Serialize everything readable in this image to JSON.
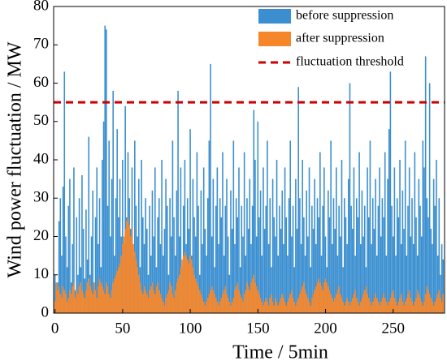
{
  "chart_data": {
    "type": "bar",
    "xlabel": "Time / 5min",
    "ylabel": "Wind power fluctuation / MW",
    "x": [
      0,
      1,
      2,
      3,
      4,
      5,
      6,
      7,
      8,
      9,
      10,
      11,
      12,
      13,
      14,
      15,
      16,
      17,
      18,
      19,
      20,
      21,
      22,
      23,
      24,
      25,
      26,
      27,
      28,
      29,
      30,
      31,
      32,
      33,
      34,
      35,
      36,
      37,
      38,
      39,
      40,
      41,
      42,
      43,
      44,
      45,
      46,
      47,
      48,
      49,
      50,
      51,
      52,
      53,
      54,
      55,
      56,
      57,
      58,
      59,
      60,
      61,
      62,
      63,
      64,
      65,
      66,
      67,
      68,
      69,
      70,
      71,
      72,
      73,
      74,
      75,
      76,
      77,
      78,
      79,
      80,
      81,
      82,
      83,
      84,
      85,
      86,
      87,
      88,
      89,
      90,
      91,
      92,
      93,
      94,
      95,
      96,
      97,
      98,
      99,
      100,
      101,
      102,
      103,
      104,
      105,
      106,
      107,
      108,
      109,
      110,
      111,
      112,
      113,
      114,
      115,
      116,
      117,
      118,
      119,
      120,
      121,
      122,
      123,
      124,
      125,
      126,
      127,
      128,
      129,
      130,
      131,
      132,
      133,
      134,
      135,
      136,
      137,
      138,
      139,
      140,
      141,
      142,
      143,
      144,
      145,
      146,
      147,
      148,
      149,
      150,
      151,
      152,
      153,
      154,
      155,
      156,
      157,
      158,
      159,
      160,
      161,
      162,
      163,
      164,
      165,
      166,
      167,
      168,
      169,
      170,
      171,
      172,
      173,
      174,
      175,
      176,
      177,
      178,
      179,
      180,
      181,
      182,
      183,
      184,
      185,
      186,
      187,
      188,
      189,
      190,
      191,
      192,
      193,
      194,
      195,
      196,
      197,
      198,
      199,
      200,
      201,
      202,
      203,
      204,
      205,
      206,
      207,
      208,
      209,
      210,
      211,
      212,
      213,
      214,
      215,
      216,
      217,
      218,
      219,
      220,
      221,
      222,
      223,
      224,
      225,
      226,
      227,
      228,
      229,
      230,
      231,
      232,
      233,
      234,
      235,
      236,
      237,
      238,
      239,
      240,
      241,
      242,
      243,
      244,
      245,
      246,
      247,
      248,
      249,
      250,
      251,
      252,
      253,
      254,
      255,
      256,
      257,
      258,
      259,
      260,
      261,
      262,
      263,
      264,
      265,
      266,
      267,
      268,
      269,
      270,
      271,
      272,
      273,
      274,
      275,
      276,
      277,
      278,
      279,
      280,
      281,
      282,
      283,
      284,
      285,
      286,
      287
    ],
    "series": [
      {
        "name": "before suppression",
        "color": "#3b8fd0",
        "values": [
          10,
          5,
          8,
          24,
          30,
          15,
          33,
          63,
          20,
          12,
          28,
          35,
          8,
          18,
          38,
          6,
          25,
          10,
          30,
          12,
          36,
          22,
          9,
          27,
          14,
          46,
          10,
          20,
          32,
          8,
          25,
          38,
          18,
          30,
          12,
          40,
          50,
          75,
          74,
          28,
          45,
          20,
          35,
          58,
          15,
          30,
          48,
          25,
          35,
          20,
          40,
          18,
          54,
          25,
          42,
          30,
          22,
          38,
          15,
          45,
          28,
          20,
          35,
          12,
          40,
          25,
          18,
          30,
          22,
          10,
          28,
          15,
          32,
          20,
          38,
          12,
          25,
          30,
          18,
          40,
          15,
          22,
          35,
          28,
          10,
          30,
          20,
          45,
          25,
          15,
          32,
          58,
          20,
          38,
          12,
          28,
          40,
          18,
          30,
          22,
          48,
          15,
          35,
          25,
          20,
          42,
          28,
          10,
          32,
          18,
          38,
          22,
          15,
          30,
          45,
          65,
          20,
          35,
          12,
          28,
          38,
          18,
          30,
          25,
          42,
          15,
          28,
          35,
          20,
          10,
          32,
          22,
          45,
          18,
          30,
          25,
          38,
          12,
          28,
          20,
          42,
          15,
          30,
          22,
          35,
          18,
          28,
          53,
          40,
          20,
          50,
          25,
          32,
          15,
          38,
          22,
          28,
          45,
          18,
          30,
          12,
          35,
          25,
          20,
          40,
          15,
          28,
          22,
          32,
          18,
          38,
          25,
          15,
          30,
          45,
          20,
          28,
          12,
          35,
          22,
          59,
          30,
          18,
          40,
          25,
          15,
          32,
          20,
          38,
          12,
          28,
          22,
          35,
          18,
          30,
          25,
          42,
          15,
          28,
          38,
          20,
          12,
          32,
          25,
          45,
          18,
          30,
          22,
          38,
          15,
          28,
          20,
          40,
          12,
          30,
          25,
          18,
          35,
          60,
          28,
          22,
          38,
          15,
          30,
          25,
          42,
          18,
          32,
          20,
          28,
          12,
          38,
          25,
          45,
          18,
          30,
          22,
          35,
          15,
          28,
          38,
          20,
          30,
          25,
          42,
          15,
          35,
          48,
          63,
          28,
          20,
          38,
          15,
          30,
          25,
          40,
          18,
          32,
          22,
          45,
          15,
          28,
          38,
          20,
          30,
          18,
          42,
          25,
          15,
          35,
          28,
          20,
          45,
          38,
          67,
          30,
          25,
          60,
          22,
          18,
          35,
          28,
          40,
          15,
          30,
          10,
          18,
          14
        ]
      },
      {
        "name": "after suppression",
        "color": "#f5862a",
        "values": [
          3,
          8,
          6,
          7,
          5,
          4,
          7,
          6,
          5,
          3,
          4,
          6,
          5,
          7,
          8,
          4,
          6,
          5,
          7,
          8,
          6,
          5,
          4,
          6,
          8,
          9,
          7,
          6,
          5,
          8,
          6,
          4,
          7,
          9,
          8,
          7,
          6,
          5,
          8,
          7,
          5,
          4,
          6,
          8,
          9,
          10,
          11,
          12,
          13,
          15,
          18,
          20,
          22,
          24,
          25,
          23,
          20,
          22,
          18,
          16,
          14,
          12,
          10,
          8,
          6,
          5,
          7,
          6,
          5,
          4,
          6,
          7,
          8,
          6,
          5,
          7,
          8,
          6,
          5,
          4,
          3,
          2,
          4,
          5,
          6,
          8,
          7,
          5,
          4,
          6,
          8,
          9,
          10,
          12,
          14,
          15,
          16,
          15,
          14,
          13,
          15,
          14,
          12,
          10,
          9,
          8,
          7,
          6,
          5,
          4,
          3,
          2,
          3,
          4,
          5,
          6,
          7,
          6,
          5,
          4,
          3,
          2,
          3,
          4,
          5,
          6,
          7,
          5,
          4,
          3,
          2,
          3,
          4,
          6,
          7,
          8,
          6,
          5,
          4,
          3,
          5,
          6,
          8,
          7,
          6,
          8,
          9,
          10,
          8,
          7,
          6,
          5,
          4,
          3,
          2,
          3,
          4,
          3,
          2,
          4,
          5,
          3,
          2,
          4,
          3,
          2,
          3,
          4,
          5,
          4,
          3,
          2,
          3,
          4,
          5,
          6,
          4,
          3,
          2,
          3,
          4,
          5,
          6,
          7,
          8,
          6,
          5,
          4,
          3,
          2,
          4,
          5,
          6,
          7,
          8,
          9,
          8,
          7,
          6,
          8,
          9,
          8,
          7,
          6,
          5,
          4,
          3,
          4,
          5,
          6,
          7,
          5,
          4,
          3,
          2,
          3,
          4,
          3,
          2,
          3,
          4,
          5,
          6,
          4,
          3,
          2,
          3,
          4,
          5,
          6,
          7,
          5,
          4,
          3,
          2,
          3,
          4,
          5,
          4,
          3,
          2,
          3,
          4,
          5,
          4,
          3,
          2,
          3,
          4,
          5,
          6,
          4,
          3,
          2,
          3,
          4,
          5,
          3,
          2,
          3,
          4,
          5,
          6,
          4,
          3,
          2,
          3,
          4,
          6,
          5,
          4,
          3,
          2,
          3,
          5,
          7,
          6,
          5,
          4,
          3,
          2,
          3,
          4,
          5,
          6,
          4,
          3,
          5
        ]
      }
    ],
    "threshold": {
      "name": "fluctuation threshold",
      "value": 55,
      "color": "#cc0000"
    },
    "xlim": [
      -1,
      288
    ],
    "xticks": [
      0,
      50,
      100,
      150,
      200,
      250
    ],
    "ylim": [
      0,
      80
    ],
    "yticks": [
      0,
      10,
      20,
      30,
      40,
      50,
      60,
      70,
      80
    ],
    "grid": false,
    "legend": "upper right"
  }
}
